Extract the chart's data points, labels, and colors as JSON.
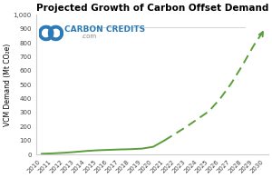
{
  "title": "Projected Growth of Carbon Offset Demand",
  "ylabel": "VCM Demand (Mt CO₂e)",
  "ylim": [
    0,
    1000
  ],
  "yticks": [
    0,
    100,
    200,
    300,
    400,
    500,
    600,
    700,
    800,
    900,
    1000
  ],
  "ytick_labels": [
    "0",
    "100",
    "200",
    "300",
    "400",
    "500",
    "600",
    "700",
    "800",
    "900",
    "1,000"
  ],
  "xlim": [
    2010,
    2030
  ],
  "xticks": [
    2010,
    2011,
    2012,
    2013,
    2014,
    2015,
    2016,
    2017,
    2018,
    2019,
    2020,
    2021,
    2022,
    2023,
    2024,
    2025,
    2026,
    2027,
    2028,
    2029,
    2030
  ],
  "solid_x": [
    2010,
    2011,
    2012,
    2013,
    2014,
    2015,
    2016,
    2017,
    2018,
    2019,
    2020,
    2021
  ],
  "solid_y": [
    5,
    8,
    12,
    18,
    25,
    30,
    33,
    36,
    38,
    42,
    55,
    100
  ],
  "dashed_x": [
    2021,
    2022,
    2023,
    2024,
    2025,
    2026,
    2027,
    2028,
    2029,
    2030
  ],
  "dashed_y": [
    100,
    150,
    200,
    255,
    310,
    400,
    510,
    640,
    780,
    900
  ],
  "line_color": "#5a9e3a",
  "line_width": 1.4,
  "bg_color": "#ffffff",
  "logo_text_carbon": "CARBON CREDITS",
  "logo_text_com": ".com",
  "logo_color": "#2c7bb6",
  "watermark_line_color": "#cccccc",
  "title_fontsize": 7.5,
  "tick_fontsize": 5.0,
  "ylabel_fontsize": 5.5
}
